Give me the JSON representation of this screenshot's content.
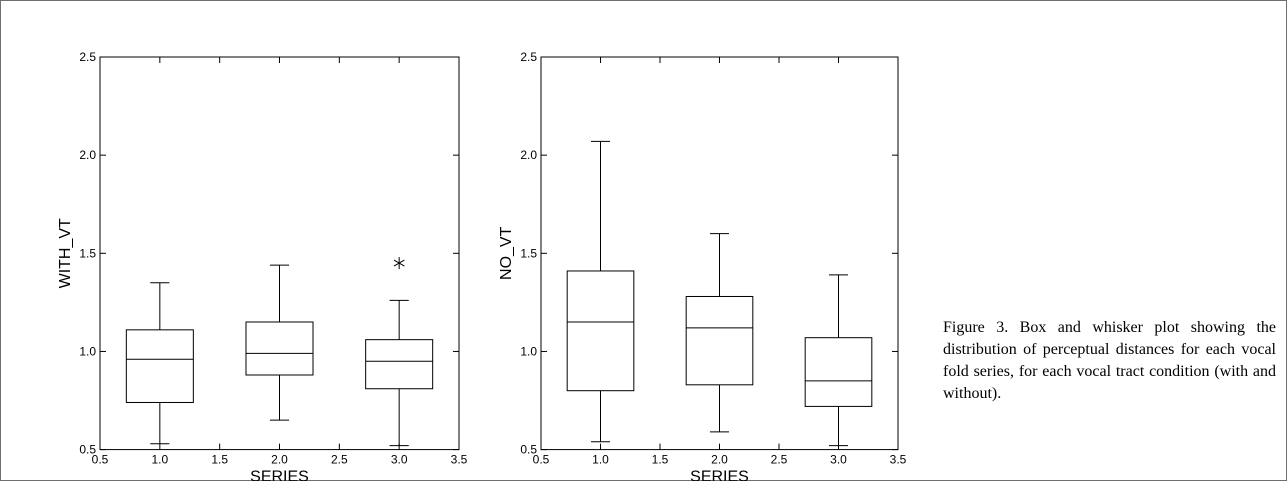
{
  "chart_data": [
    {
      "type": "box",
      "xlabel": "SERIES",
      "ylabel": "WITH_VT",
      "xlim": [
        0.5,
        3.5
      ],
      "ylim": [
        0.5,
        2.5
      ],
      "x_ticks": [
        "0.5",
        "1.0",
        "1.5",
        "2.0",
        "2.5",
        "3.0",
        "3.5"
      ],
      "y_ticks": [
        "0.5",
        "1.0",
        "1.5",
        "2.0",
        "2.5"
      ],
      "boxes": [
        {
          "x": 1.0,
          "min": 0.53,
          "q1": 0.74,
          "median": 0.96,
          "q3": 1.11,
          "max": 1.35,
          "outliers": []
        },
        {
          "x": 2.0,
          "min": 0.65,
          "q1": 0.88,
          "median": 0.99,
          "q3": 1.15,
          "max": 1.44,
          "outliers": []
        },
        {
          "x": 3.0,
          "min": 0.52,
          "q1": 0.81,
          "median": 0.95,
          "q3": 1.06,
          "max": 1.26,
          "outliers": [
            1.45
          ]
        }
      ]
    },
    {
      "type": "box",
      "xlabel": "SERIES",
      "ylabel": "NO_VT",
      "xlim": [
        0.5,
        3.5
      ],
      "ylim": [
        0.5,
        2.5
      ],
      "x_ticks": [
        "0.5",
        "1.0",
        "1.5",
        "2.0",
        "2.5",
        "3.0",
        "3.5"
      ],
      "y_ticks": [
        "0.5",
        "1.0",
        "1.5",
        "2.0",
        "2.5"
      ],
      "boxes": [
        {
          "x": 1.0,
          "min": 0.54,
          "q1": 0.8,
          "median": 1.15,
          "q3": 1.41,
          "max": 2.07,
          "outliers": []
        },
        {
          "x": 2.0,
          "min": 0.59,
          "q1": 0.83,
          "median": 1.12,
          "q3": 1.28,
          "max": 1.6,
          "outliers": []
        },
        {
          "x": 3.0,
          "min": 0.52,
          "q1": 0.72,
          "median": 0.85,
          "q3": 1.07,
          "max": 1.39,
          "outliers": []
        }
      ]
    }
  ],
  "caption": "Figure 3. Box and whisker plot showing the distribution of perceptual distances for each vocal fold series, for each vocal tract condition (with and without)."
}
